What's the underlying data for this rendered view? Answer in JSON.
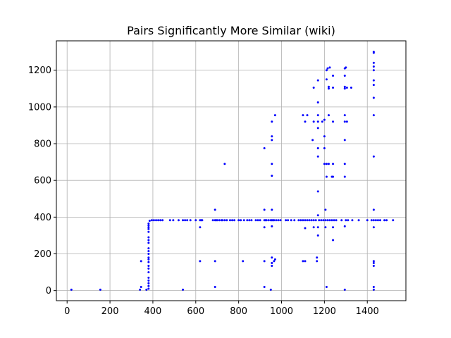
{
  "chart_data": {
    "type": "scatter",
    "title": "Pairs Significantly More Similar (wiki)",
    "xlabel": "",
    "ylabel": "",
    "xlim": [
      -50,
      1580
    ],
    "ylim": [
      -55,
      1360
    ],
    "grid": true,
    "marker_color": "#0000ff",
    "x_ticks": [
      0,
      200,
      400,
      600,
      800,
      1000,
      1200,
      1400
    ],
    "y_ticks": [
      0,
      200,
      400,
      600,
      800,
      1000,
      1200
    ],
    "x_tick_labels": [
      "0",
      "200",
      "400",
      "600",
      "800",
      "1000",
      "1200",
      "1400"
    ],
    "y_tick_labels": [
      "0",
      "200",
      "400",
      "600",
      "800",
      "1000",
      "1200"
    ],
    "points": [
      [
        20,
        5
      ],
      [
        155,
        5
      ],
      [
        340,
        5
      ],
      [
        345,
        20
      ],
      [
        345,
        160
      ],
      [
        370,
        5
      ],
      [
        380,
        10
      ],
      [
        380,
        25
      ],
      [
        380,
        40
      ],
      [
        380,
        55
      ],
      [
        380,
        70
      ],
      [
        380,
        100
      ],
      [
        380,
        120
      ],
      [
        380,
        135
      ],
      [
        380,
        155
      ],
      [
        380,
        170
      ],
      [
        380,
        180
      ],
      [
        380,
        200
      ],
      [
        380,
        215
      ],
      [
        380,
        230
      ],
      [
        380,
        260
      ],
      [
        380,
        275
      ],
      [
        380,
        290
      ],
      [
        380,
        320
      ],
      [
        380,
        335
      ],
      [
        380,
        345
      ],
      [
        380,
        355
      ],
      [
        380,
        365
      ],
      [
        385,
        380
      ],
      [
        395,
        383
      ],
      [
        405,
        383
      ],
      [
        415,
        383
      ],
      [
        425,
        383
      ],
      [
        435,
        383
      ],
      [
        445,
        383
      ],
      [
        480,
        383
      ],
      [
        495,
        383
      ],
      [
        520,
        383
      ],
      [
        540,
        383
      ],
      [
        550,
        383
      ],
      [
        560,
        383
      ],
      [
        575,
        383
      ],
      [
        600,
        383
      ],
      [
        620,
        383
      ],
      [
        625,
        383
      ],
      [
        630,
        383
      ],
      [
        540,
        5
      ],
      [
        620,
        345
      ],
      [
        620,
        160
      ],
      [
        680,
        383
      ],
      [
        690,
        383
      ],
      [
        695,
        383
      ],
      [
        700,
        383
      ],
      [
        710,
        383
      ],
      [
        720,
        383
      ],
      [
        725,
        383
      ],
      [
        735,
        383
      ],
      [
        745,
        383
      ],
      [
        760,
        383
      ],
      [
        770,
        383
      ],
      [
        780,
        383
      ],
      [
        800,
        383
      ],
      [
        810,
        383
      ],
      [
        825,
        383
      ],
      [
        840,
        383
      ],
      [
        850,
        383
      ],
      [
        860,
        383
      ],
      [
        880,
        383
      ],
      [
        890,
        383
      ],
      [
        900,
        383
      ],
      [
        920,
        383
      ],
      [
        925,
        383
      ],
      [
        930,
        383
      ],
      [
        940,
        383
      ],
      [
        950,
        383
      ],
      [
        955,
        383
      ],
      [
        960,
        383
      ],
      [
        965,
        383
      ],
      [
        975,
        383
      ],
      [
        985,
        383
      ],
      [
        995,
        383
      ],
      [
        1020,
        383
      ],
      [
        1030,
        383
      ],
      [
        1045,
        383
      ],
      [
        1060,
        383
      ],
      [
        1080,
        383
      ],
      [
        1090,
        383
      ],
      [
        1100,
        383
      ],
      [
        1110,
        383
      ],
      [
        1120,
        383
      ],
      [
        1130,
        383
      ],
      [
        1140,
        383
      ],
      [
        1150,
        383
      ],
      [
        1160,
        383
      ],
      [
        1175,
        383
      ],
      [
        1185,
        383
      ],
      [
        1195,
        383
      ],
      [
        1205,
        383
      ],
      [
        1215,
        383
      ],
      [
        1225,
        383
      ],
      [
        1235,
        383
      ],
      [
        1245,
        383
      ],
      [
        1255,
        383
      ],
      [
        1280,
        383
      ],
      [
        1300,
        383
      ],
      [
        1310,
        383
      ],
      [
        1330,
        383
      ],
      [
        1360,
        383
      ],
      [
        1400,
        383
      ],
      [
        1420,
        383
      ],
      [
        1430,
        383
      ],
      [
        1440,
        383
      ],
      [
        1450,
        383
      ],
      [
        1460,
        383
      ],
      [
        1480,
        383
      ],
      [
        1490,
        383
      ],
      [
        1520,
        383
      ],
      [
        690,
        440
      ],
      [
        690,
        160
      ],
      [
        690,
        20
      ],
      [
        735,
        690
      ],
      [
        820,
        160
      ],
      [
        920,
        20
      ],
      [
        920,
        160
      ],
      [
        920,
        345
      ],
      [
        920,
        440
      ],
      [
        920,
        775
      ],
      [
        950,
        5
      ],
      [
        955,
        135
      ],
      [
        955,
        150
      ],
      [
        955,
        180
      ],
      [
        955,
        350
      ],
      [
        955,
        440
      ],
      [
        955,
        625
      ],
      [
        955,
        690
      ],
      [
        955,
        820
      ],
      [
        955,
        840
      ],
      [
        955,
        920
      ],
      [
        965,
        160
      ],
      [
        970,
        955
      ],
      [
        970,
        170
      ],
      [
        1100,
        160
      ],
      [
        1100,
        955
      ],
      [
        1110,
        160
      ],
      [
        1110,
        340
      ],
      [
        1110,
        920
      ],
      [
        1120,
        955
      ],
      [
        1145,
        820
      ],
      [
        1150,
        1105
      ],
      [
        1150,
        920
      ],
      [
        1150,
        345
      ],
      [
        1165,
        160
      ],
      [
        1165,
        180
      ],
      [
        1170,
        300
      ],
      [
        1170,
        345
      ],
      [
        1170,
        410
      ],
      [
        1170,
        540
      ],
      [
        1170,
        730
      ],
      [
        1170,
        775
      ],
      [
        1170,
        885
      ],
      [
        1170,
        920
      ],
      [
        1170,
        955
      ],
      [
        1170,
        1025
      ],
      [
        1170,
        1145
      ],
      [
        1190,
        920
      ],
      [
        1200,
        930
      ],
      [
        1200,
        840
      ],
      [
        1200,
        775
      ],
      [
        1200,
        690
      ],
      [
        1210,
        690
      ],
      [
        1210,
        620
      ],
      [
        1205,
        345
      ],
      [
        1205,
        440
      ],
      [
        1210,
        20
      ],
      [
        1210,
        1150
      ],
      [
        1210,
        1200
      ],
      [
        1215,
        1210
      ],
      [
        1220,
        1100
      ],
      [
        1220,
        1110
      ],
      [
        1220,
        955
      ],
      [
        1220,
        690
      ],
      [
        1225,
        1215
      ],
      [
        1235,
        620
      ],
      [
        1240,
        1170
      ],
      [
        1240,
        1105
      ],
      [
        1240,
        920
      ],
      [
        1240,
        690
      ],
      [
        1240,
        345
      ],
      [
        1240,
        275
      ],
      [
        1240,
        620
      ],
      [
        1295,
        5
      ],
      [
        1295,
        350
      ],
      [
        1295,
        620
      ],
      [
        1295,
        690
      ],
      [
        1295,
        820
      ],
      [
        1295,
        920
      ],
      [
        1295,
        955
      ],
      [
        1295,
        1100
      ],
      [
        1295,
        1110
      ],
      [
        1295,
        1170
      ],
      [
        1295,
        1210
      ],
      [
        1305,
        920
      ],
      [
        1300,
        1215
      ],
      [
        1305,
        1105
      ],
      [
        1325,
        1105
      ],
      [
        1430,
        5
      ],
      [
        1430,
        20
      ],
      [
        1430,
        135
      ],
      [
        1430,
        150
      ],
      [
        1430,
        160
      ],
      [
        1430,
        345
      ],
      [
        1430,
        440
      ],
      [
        1430,
        730
      ],
      [
        1430,
        955
      ],
      [
        1430,
        1050
      ],
      [
        1430,
        1120
      ],
      [
        1430,
        1145
      ],
      [
        1430,
        1200
      ],
      [
        1430,
        1220
      ],
      [
        1430,
        1240
      ],
      [
        1430,
        1295
      ],
      [
        1430,
        1300
      ]
    ]
  }
}
